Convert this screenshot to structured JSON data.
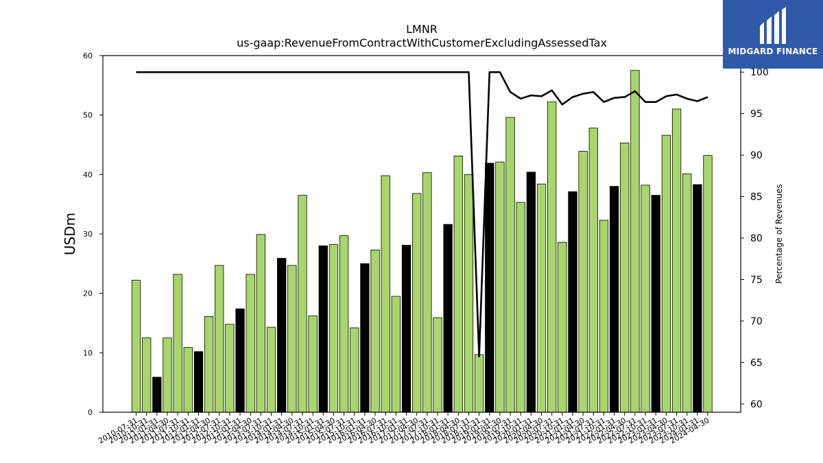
{
  "logo": {
    "text": "MIDGARD FINANCE",
    "icon": "midgard-logo-icon",
    "background": "#2f5aa8"
  },
  "chart_data": {
    "type": "bar",
    "title": "LMNR",
    "subtitle": "us-gaap:RevenueFromContractWithCustomerExcludingAssessedTax",
    "ylabel": "USDm",
    "y2label": "Percentage of Revenues",
    "ylim": [
      0,
      60
    ],
    "y2lim": [
      59,
      102
    ],
    "yticks": [
      0,
      10,
      20,
      30,
      40,
      50,
      60
    ],
    "y2ticks": [
      60,
      65,
      70,
      75,
      80,
      85,
      90,
      95,
      100
    ],
    "categories": [
      "2010-07-31",
      "2010-10-31",
      "2011-01-31",
      "2011-04-30",
      "2011-07-31",
      "2011-10-31",
      "2012-01-31",
      "2012-04-30",
      "2012-07-31",
      "2012-10-31",
      "2013-01-31",
      "2013-04-30",
      "2013-07-31",
      "2013-10-31",
      "2014-01-31",
      "2014-04-30",
      "2014-07-31",
      "2014-10-31",
      "2015-01-31",
      "2015-04-30",
      "2015-07-31",
      "2015-10-31",
      "2016-01-31",
      "2016-04-30",
      "2016-07-31",
      "2016-10-31",
      "2017-01-31",
      "2017-04-30",
      "2017-07-31",
      "2017-10-31",
      "2018-01-31",
      "2018-04-30",
      "2018-07-31",
      "2018-10-31",
      "2019-01-31",
      "2019-04-30",
      "2019-07-31",
      "2019-10-31",
      "2020-01-31",
      "2020-04-30",
      "2020-07-31",
      "2020-10-31",
      "2021-01-31",
      "2021-04-30",
      "2021-07-31",
      "2021-10-31",
      "2022-01-31",
      "2022-04-30",
      "2022-07-31",
      "2022-10-31",
      "2023-01-31",
      "2023-04-30",
      "2023-07-31",
      "2023-10-31",
      "2024-01-31",
      "2024-04-30"
    ],
    "series": [
      {
        "type": "bar",
        "values": [
          22.2,
          12.5,
          5.9,
          12.5,
          23.2,
          10.9,
          10.2,
          16.1,
          24.7,
          14.8,
          17.4,
          23.2,
          29.9,
          14.3,
          25.9,
          24.7,
          36.5,
          16.2,
          28.0,
          28.2,
          29.7,
          14.2,
          25.0,
          27.3,
          39.8,
          19.5,
          28.1,
          36.8,
          40.3,
          15.9,
          31.6,
          43.1,
          40.0,
          9.7,
          41.9,
          42.1,
          49.6,
          35.3,
          40.4,
          38.4,
          52.2,
          28.6,
          37.1,
          43.9,
          47.8,
          32.3,
          38.0,
          45.3,
          57.5,
          38.2,
          36.5,
          46.6,
          51.0,
          40.1,
          38.3,
          43.2
        ],
        "highlight": [
          false,
          false,
          true,
          false,
          false,
          false,
          true,
          false,
          false,
          false,
          true,
          false,
          false,
          false,
          true,
          false,
          false,
          false,
          true,
          false,
          false,
          false,
          true,
          false,
          false,
          false,
          true,
          false,
          false,
          false,
          true,
          false,
          false,
          false,
          true,
          false,
          false,
          false,
          true,
          false,
          false,
          false,
          true,
          false,
          false,
          false,
          true,
          false,
          false,
          false,
          true,
          false,
          false,
          false,
          true,
          false
        ],
        "color": "#a9d66a",
        "highlight_color": "#000000"
      },
      {
        "type": "line",
        "axis": "right",
        "values": [
          100,
          100,
          100,
          100,
          100,
          100,
          100,
          100,
          100,
          100,
          100,
          100,
          100,
          100,
          100,
          100,
          100,
          100,
          100,
          100,
          100,
          100,
          100,
          100,
          100,
          100,
          100,
          100,
          100,
          100,
          100,
          100,
          100,
          65.7,
          100,
          100,
          97.6,
          96.8,
          97.2,
          97.1,
          97.8,
          96.1,
          97.0,
          97.4,
          97.6,
          96.4,
          96.9,
          97.0,
          97.7,
          96.4,
          96.4,
          97.1,
          97.3,
          96.8,
          96.5,
          97.0
        ],
        "color": "#000000"
      }
    ],
    "grid": false,
    "legend": "none"
  }
}
